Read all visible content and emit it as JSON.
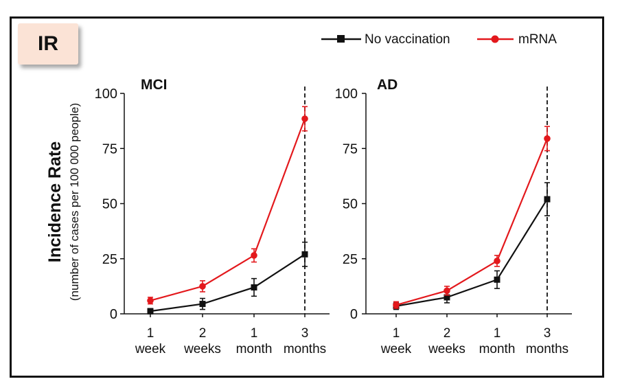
{
  "badge": "IR",
  "y_title": "Incidence Rate",
  "y_subtitle": "(number  of cases per 100 000 people)",
  "legend": [
    "No vaccination",
    "mRNA"
  ],
  "colors": {
    "no_vaccination": "#111111",
    "mrna": "#e3181c",
    "badge_bg": "#fbe3d6"
  },
  "chart_data": [
    {
      "type": "line",
      "title": "MCI",
      "categories": [
        [
          "1",
          "week"
        ],
        [
          "2",
          "weeks"
        ],
        [
          "1",
          "month"
        ],
        [
          "3",
          "months"
        ]
      ],
      "ylim": [
        0,
        100
      ],
      "yticks": [
        0,
        25,
        50,
        75,
        100
      ],
      "reference_line": "dashed vertical at 3 months",
      "series": [
        {
          "name": "No vaccination",
          "values": [
            1.2,
            4.5,
            12,
            27
          ],
          "err": [
            1.2,
            2.5,
            4,
            5.5
          ]
        },
        {
          "name": "mRNA",
          "values": [
            6,
            12.5,
            26.5,
            88.5
          ],
          "err": [
            1.5,
            2.5,
            3,
            5.5
          ]
        }
      ]
    },
    {
      "type": "line",
      "title": "AD",
      "categories": [
        [
          "1",
          "week"
        ],
        [
          "2",
          "weeks"
        ],
        [
          "1",
          "month"
        ],
        [
          "3",
          "months"
        ]
      ],
      "ylim": [
        0,
        100
      ],
      "yticks": [
        0,
        25,
        50,
        75,
        100
      ],
      "reference_line": "dashed vertical at 3 months",
      "series": [
        {
          "name": "No vaccination",
          "values": [
            3.5,
            7.5,
            15.5,
            52
          ],
          "err": [
            1.5,
            2.5,
            4,
            7.5
          ]
        },
        {
          "name": "mRNA",
          "values": [
            4,
            10.5,
            24,
            79.5
          ],
          "err": [
            1.5,
            2,
            2.5,
            5.5
          ]
        }
      ]
    }
  ]
}
